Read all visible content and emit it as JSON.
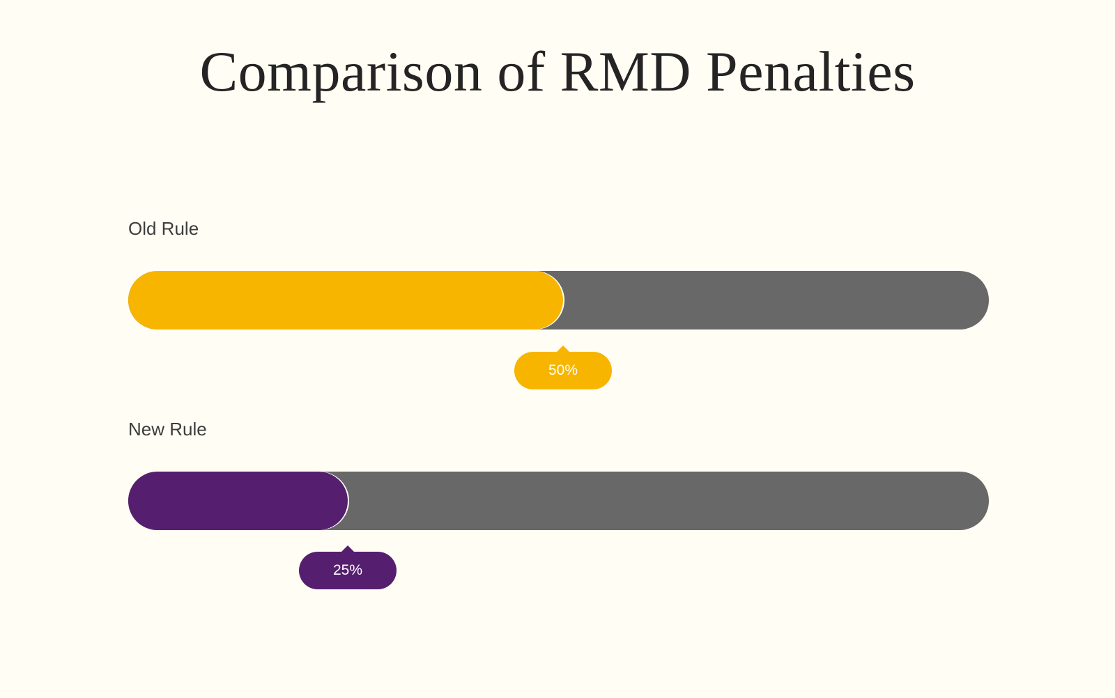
{
  "chart_data": {
    "type": "bar",
    "title": "Comparison of RMD Penalties",
    "orientation": "horizontal",
    "xlim": [
      0,
      100
    ],
    "categories": [
      "Old Rule",
      "New Rule"
    ],
    "values": [
      50,
      25
    ],
    "value_labels": [
      "50%",
      "25%"
    ],
    "colors": [
      "#f7b500",
      "#561e6e"
    ],
    "track_color": "#686868"
  }
}
